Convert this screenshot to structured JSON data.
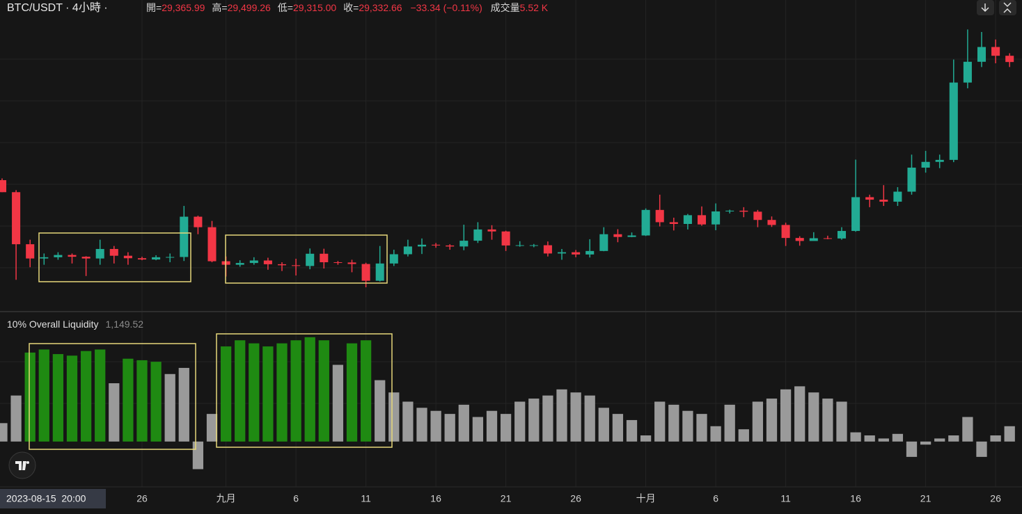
{
  "header": {
    "symbol": "BTC/USDT · 4小時 ·",
    "items": [
      {
        "label": "開=",
        "value": "29,365.99"
      },
      {
        "label": "高=",
        "value": "29,499.26"
      },
      {
        "label": "低=",
        "value": "29,315.00"
      },
      {
        "label": "收=",
        "value": "29,332.66"
      }
    ],
    "change": "−33.34 (−0.11%)",
    "volume_label": "成交量",
    "volume": "5.52 K",
    "crosshair": "2023-08-15  20:00"
  },
  "chart_data": [
    {
      "type": "candlestick",
      "up_color": "#22ab94",
      "down_color": "#f23645",
      "ylim": [
        23900,
        36100
      ],
      "categories": [
        null,
        null,
        null,
        null,
        null,
        null,
        null,
        null,
        null,
        null,
        "26",
        null,
        null,
        null,
        null,
        null,
        "九月",
        null,
        null,
        null,
        null,
        "6",
        null,
        null,
        null,
        null,
        "11",
        null,
        null,
        null,
        null,
        "16",
        null,
        null,
        null,
        null,
        "21",
        null,
        null,
        null,
        null,
        "26",
        null,
        null,
        null,
        null,
        "十月",
        null,
        null,
        null,
        null,
        "6",
        null,
        null,
        null,
        null,
        "11",
        null,
        null,
        null,
        null,
        "16",
        null,
        null,
        null,
        null,
        "21",
        null,
        null,
        null,
        null,
        "26",
        null
      ],
      "open": [
        29180,
        28700,
        26620,
        26050,
        26100,
        26190,
        26120,
        26050,
        26430,
        26160,
        26060,
        26010,
        26100,
        26110,
        27720,
        27300,
        25940,
        25800,
        25870,
        25970,
        25820,
        25780,
        25750,
        26240,
        25900,
        25890,
        25830,
        25160,
        25850,
        26220,
        26530,
        26600,
        26570,
        26530,
        26760,
        27210,
        27130,
        26570,
        26580,
        26580,
        26250,
        26300,
        26210,
        26350,
        27020,
        26910,
        26970,
        27990,
        27500,
        27430,
        27780,
        27410,
        27930,
        27960,
        27920,
        27590,
        27390,
        26870,
        26750,
        26860,
        26850,
        27150,
        28500,
        28400,
        28320,
        28720,
        29680,
        29910,
        29990,
        33080,
        33910,
        34500,
        34150
      ],
      "high": [
        29250,
        28780,
        26800,
        26250,
        26300,
        26250,
        26140,
        26800,
        26550,
        26300,
        26120,
        26180,
        26250,
        28150,
        27760,
        27550,
        26130,
        25980,
        26100,
        26080,
        25900,
        26040,
        26450,
        26440,
        25950,
        26000,
        25880,
        26550,
        26400,
        26800,
        26850,
        26670,
        26620,
        27400,
        27500,
        27380,
        27160,
        26740,
        26630,
        26730,
        26430,
        26390,
        26820,
        27300,
        27220,
        27090,
        28050,
        28600,
        27680,
        27830,
        28130,
        28250,
        28000,
        28100,
        27990,
        27730,
        27480,
        26940,
        27100,
        26960,
        27300,
        30000,
        28600,
        28980,
        28900,
        30200,
        30350,
        30200,
        34000,
        35200,
        35100,
        34800,
        34250
      ],
      "low": [
        28700,
        25200,
        25700,
        25800,
        26000,
        25850,
        25350,
        25800,
        25850,
        25800,
        25980,
        25980,
        25900,
        25950,
        27020,
        25900,
        25330,
        25720,
        25800,
        25600,
        25550,
        25370,
        25620,
        25650,
        25800,
        25500,
        24900,
        25130,
        25750,
        26130,
        26230,
        26480,
        26400,
        26380,
        26670,
        26800,
        26350,
        26520,
        26500,
        26130,
        26000,
        26100,
        26090,
        26340,
        26700,
        26900,
        26950,
        27330,
        27170,
        27210,
        27360,
        27180,
        27850,
        27700,
        27300,
        27310,
        26550,
        26560,
        26800,
        26820,
        26800,
        27120,
        28100,
        28150,
        28150,
        28600,
        29480,
        29660,
        29900,
        32850,
        33700,
        33850,
        33700
      ],
      "close": [
        28700,
        26620,
        26050,
        26100,
        26190,
        26120,
        26050,
        26430,
        26160,
        26060,
        26010,
        26100,
        26110,
        27720,
        27300,
        25940,
        25800,
        25870,
        25970,
        25820,
        25780,
        25750,
        26240,
        25900,
        25890,
        25830,
        25160,
        25850,
        26220,
        26530,
        26600,
        26570,
        26530,
        26760,
        27210,
        27130,
        26570,
        26580,
        26580,
        26250,
        26300,
        26210,
        26350,
        27020,
        26910,
        26970,
        27990,
        27500,
        27430,
        27780,
        27410,
        27930,
        27960,
        27920,
        27590,
        27390,
        26870,
        26750,
        26860,
        26850,
        27150,
        28500,
        28400,
        28320,
        28720,
        29680,
        29910,
        29990,
        33080,
        33910,
        34500,
        34150,
        33900
      ]
    },
    {
      "type": "bar",
      "title": "10% Overall Liquidity",
      "current": "1,149.52",
      "ylim": [
        -1500,
        3600
      ],
      "values": [
        600,
        1500,
        2900,
        3000,
        2850,
        2800,
        2950,
        3000,
        1900,
        2700,
        2650,
        2600,
        2200,
        2400,
        -900,
        900,
        3100,
        3300,
        3200,
        3100,
        3200,
        3300,
        3400,
        3300,
        2500,
        3200,
        3300,
        2000,
        1600,
        1300,
        1100,
        1000,
        900,
        1200,
        800,
        1000,
        900,
        1300,
        1400,
        1500,
        1700,
        1600,
        1500,
        1100,
        900,
        700,
        200,
        1300,
        1200,
        1000,
        900,
        500,
        1200,
        400,
        1300,
        1400,
        1700,
        1800,
        1600,
        1400,
        1300,
        300,
        200,
        100,
        250,
        -500,
        -100,
        100,
        200,
        800,
        -500,
        200,
        500
      ],
      "colors": [
        "#9a9a9a",
        "#9a9a9a",
        "#1f8a12",
        "#1f8a12",
        "#1f8a12",
        "#1f8a12",
        "#1f8a12",
        "#1f8a12",
        "#9a9a9a",
        "#1f8a12",
        "#1f8a12",
        "#1f8a12",
        "#9a9a9a",
        "#9a9a9a",
        "#9a9a9a",
        "#9a9a9a",
        "#1f8a12",
        "#1f8a12",
        "#1f8a12",
        "#1f8a12",
        "#1f8a12",
        "#1f8a12",
        "#1f8a12",
        "#1f8a12",
        "#9a9a9a",
        "#1f8a12",
        "#1f8a12",
        "#9a9a9a",
        "#9a9a9a",
        "#9a9a9a",
        "#9a9a9a",
        "#9a9a9a",
        "#9a9a9a",
        "#9a9a9a",
        "#9a9a9a",
        "#9a9a9a",
        "#9a9a9a",
        "#9a9a9a",
        "#9a9a9a",
        "#9a9a9a",
        "#9a9a9a",
        "#9a9a9a",
        "#9a9a9a",
        "#9a9a9a",
        "#9a9a9a",
        "#9a9a9a",
        "#9a9a9a",
        "#9a9a9a",
        "#9a9a9a",
        "#9a9a9a",
        "#9a9a9a",
        "#9a9a9a",
        "#9a9a9a",
        "#9a9a9a",
        "#9a9a9a",
        "#9a9a9a",
        "#9a9a9a",
        "#9a9a9a",
        "#9a9a9a",
        "#9a9a9a",
        "#9a9a9a",
        "#9a9a9a",
        "#9a9a9a",
        "#9a9a9a",
        "#9a9a9a",
        "#9a9a9a",
        "#9a9a9a",
        "#9a9a9a",
        "#9a9a9a",
        "#9a9a9a",
        "#9a9a9a",
        "#9a9a9a",
        "#9a9a9a"
      ]
    }
  ]
}
